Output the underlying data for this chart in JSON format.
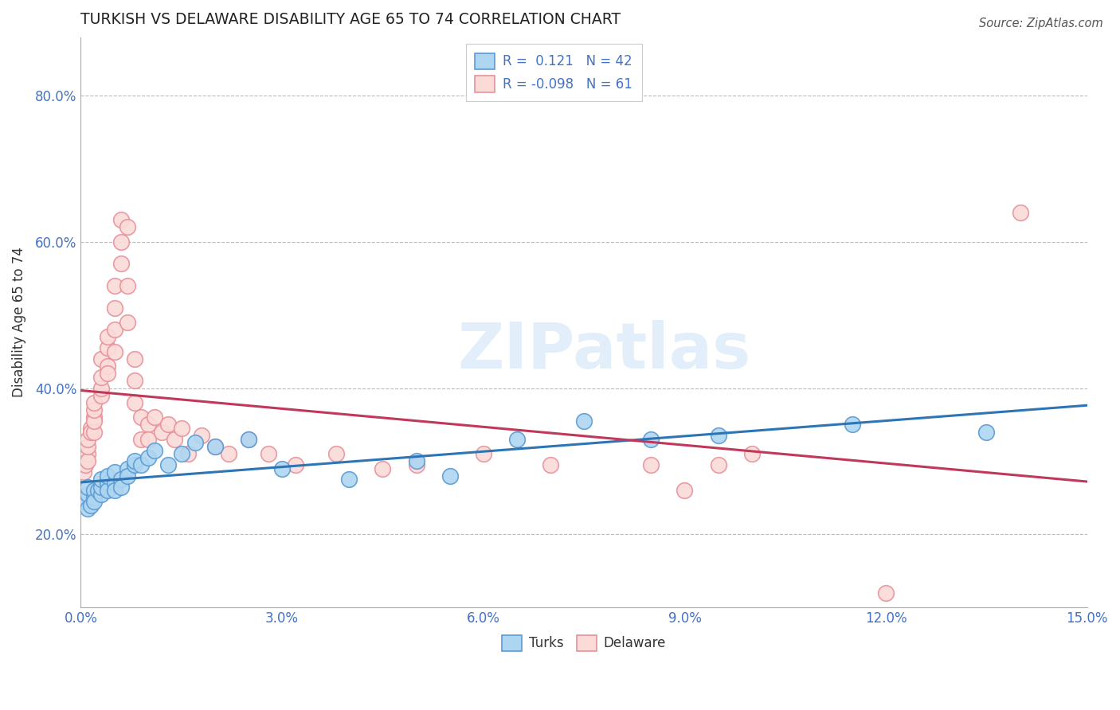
{
  "title": "TURKISH VS DELAWARE DISABILITY AGE 65 TO 74 CORRELATION CHART",
  "source": "Source: ZipAtlas.com",
  "ylabel": "Disability Age 65 to 74",
  "xlim": [
    0.0,
    0.15
  ],
  "ylim": [
    0.1,
    0.88
  ],
  "xticks": [
    0.0,
    0.03,
    0.06,
    0.09,
    0.12,
    0.15
  ],
  "xticklabels": [
    "0.0%",
    "3.0%",
    "6.0%",
    "9.0%",
    "12.0%",
    "15.0%"
  ],
  "yticks": [
    0.2,
    0.4,
    0.6,
    0.8
  ],
  "yticklabels": [
    "20.0%",
    "40.0%",
    "60.0%",
    "80.0%"
  ],
  "turks_R": 0.121,
  "turks_N": 42,
  "delaware_R": -0.098,
  "delaware_N": 61,
  "turks_color": "#AED6F1",
  "turks_edge_color": "#5B9BD5",
  "turks_line_color": "#2E75B6",
  "delaware_color": "#FADBD8",
  "delaware_edge_color": "#E8919A",
  "delaware_line_color": "#C0395A",
  "background_color": "#ffffff",
  "grid_color": "#bbbbbb",
  "tick_color": "#4472C4",
  "turks_x": [
    0.0005,
    0.001,
    0.001,
    0.001,
    0.0015,
    0.002,
    0.002,
    0.002,
    0.0025,
    0.003,
    0.003,
    0.003,
    0.004,
    0.004,
    0.004,
    0.005,
    0.005,
    0.005,
    0.006,
    0.006,
    0.007,
    0.007,
    0.008,
    0.008,
    0.009,
    0.01,
    0.011,
    0.013,
    0.015,
    0.017,
    0.02,
    0.025,
    0.03,
    0.04,
    0.05,
    0.055,
    0.065,
    0.075,
    0.085,
    0.095,
    0.115,
    0.135
  ],
  "turks_y": [
    0.245,
    0.235,
    0.255,
    0.265,
    0.24,
    0.25,
    0.26,
    0.245,
    0.26,
    0.255,
    0.265,
    0.275,
    0.27,
    0.26,
    0.28,
    0.27,
    0.26,
    0.285,
    0.275,
    0.265,
    0.29,
    0.28,
    0.295,
    0.3,
    0.295,
    0.305,
    0.315,
    0.295,
    0.31,
    0.325,
    0.32,
    0.33,
    0.29,
    0.275,
    0.3,
    0.28,
    0.33,
    0.355,
    0.33,
    0.335,
    0.35,
    0.34
  ],
  "delaware_x": [
    0.0004,
    0.0006,
    0.001,
    0.001,
    0.001,
    0.001,
    0.0015,
    0.0015,
    0.002,
    0.002,
    0.002,
    0.002,
    0.002,
    0.003,
    0.003,
    0.003,
    0.003,
    0.004,
    0.004,
    0.004,
    0.004,
    0.005,
    0.005,
    0.005,
    0.005,
    0.006,
    0.006,
    0.006,
    0.007,
    0.007,
    0.007,
    0.008,
    0.008,
    0.008,
    0.009,
    0.009,
    0.01,
    0.01,
    0.011,
    0.012,
    0.013,
    0.014,
    0.015,
    0.016,
    0.018,
    0.02,
    0.022,
    0.025,
    0.028,
    0.032,
    0.038,
    0.045,
    0.05,
    0.06,
    0.07,
    0.085,
    0.09,
    0.095,
    0.1,
    0.12,
    0.14
  ],
  "delaware_y": [
    0.285,
    0.295,
    0.31,
    0.3,
    0.32,
    0.33,
    0.345,
    0.34,
    0.36,
    0.34,
    0.355,
    0.37,
    0.38,
    0.39,
    0.4,
    0.415,
    0.44,
    0.43,
    0.42,
    0.455,
    0.47,
    0.45,
    0.48,
    0.51,
    0.54,
    0.57,
    0.6,
    0.63,
    0.62,
    0.54,
    0.49,
    0.44,
    0.41,
    0.38,
    0.36,
    0.33,
    0.35,
    0.33,
    0.36,
    0.34,
    0.35,
    0.33,
    0.345,
    0.31,
    0.335,
    0.32,
    0.31,
    0.33,
    0.31,
    0.295,
    0.31,
    0.29,
    0.295,
    0.31,
    0.295,
    0.295,
    0.26,
    0.295,
    0.31,
    0.12,
    0.64
  ]
}
